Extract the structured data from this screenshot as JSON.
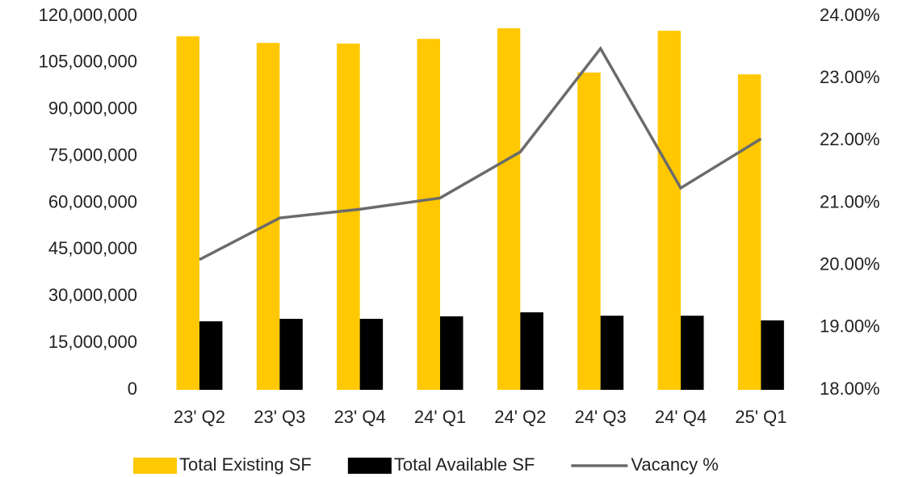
{
  "chart_data": {
    "type": "bar-line",
    "categories": [
      "23' Q2",
      "23' Q3",
      "23' Q4",
      "24' Q1",
      "24' Q2",
      "24' Q3",
      "24' Q4",
      "25' Q1"
    ],
    "series": [
      {
        "name": "Total Existing SF",
        "color": "#FFC800",
        "type": "bar",
        "values": [
          113500000,
          111400000,
          111200000,
          112700000,
          116100000,
          101900000,
          115300000,
          101300000
        ]
      },
      {
        "name": "Total Available SF",
        "color": "#000000",
        "type": "bar",
        "values": [
          22000000,
          22800000,
          22800000,
          23600000,
          24900000,
          23800000,
          23800000,
          22300000
        ]
      },
      {
        "name": "Vacancy %",
        "color": "#6b6b6b",
        "type": "line",
        "axis": "y2",
        "values": [
          20.09,
          20.76,
          20.9,
          21.08,
          21.82,
          23.48,
          21.24,
          22.03
        ]
      }
    ],
    "ylim": [
      0,
      120000000
    ],
    "yticks": [
      0,
      {
        "value": 15000000,
        "label": "15,000,000"
      },
      {
        "value": 30000000,
        "label": "30,000,000"
      },
      {
        "value": 45000000,
        "label": "45,000,000"
      },
      {
        "value": 60000000,
        "label": "60,000,000"
      },
      {
        "value": 75000000,
        "label": "75,000,000"
      },
      {
        "value": 90000000,
        "label": "90,000,000"
      },
      {
        "value": 105000000,
        "label": "105,000,000"
      },
      {
        "value": 120000000,
        "label": "120,000,000"
      }
    ],
    "y2lim": [
      18,
      24
    ],
    "y2ticks": [
      {
        "value": 18,
        "label": "18.00%"
      },
      {
        "value": 19,
        "label": "19.00%"
      },
      {
        "value": 20,
        "label": "20.00%"
      },
      {
        "value": 21,
        "label": "21.00%"
      },
      {
        "value": 22,
        "label": "22.00%"
      },
      {
        "value": 23,
        "label": "23.00%"
      },
      {
        "value": 24,
        "label": "24.00%"
      }
    ],
    "legend": "bottom"
  }
}
